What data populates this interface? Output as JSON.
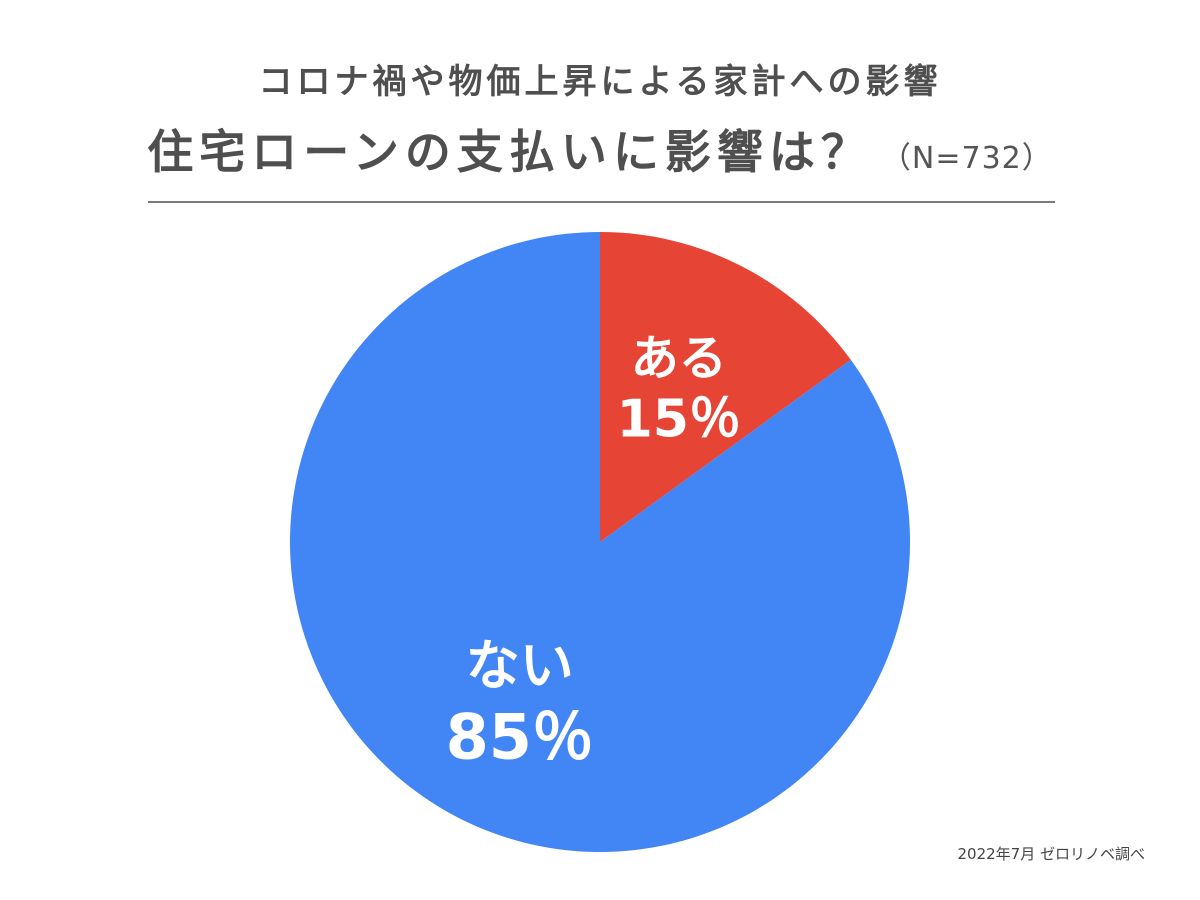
{
  "chart_data": {
    "type": "pie",
    "subtitle": "コロナ禍や物価上昇による家計への影響",
    "title": "住宅ローンの支払いに影響は？",
    "sample_size": "（N=732）",
    "slices": [
      {
        "label": "ある",
        "value": 15,
        "value_label": "15％",
        "color": "#E64435"
      },
      {
        "label": "ない",
        "value": 85,
        "value_label": "85％",
        "color": "#4285F4"
      }
    ],
    "start_angle": "12 o'clock",
    "direction": "clockwise",
    "legend": "none"
  },
  "source": "2022年7月  ゼロリノベ調べ"
}
